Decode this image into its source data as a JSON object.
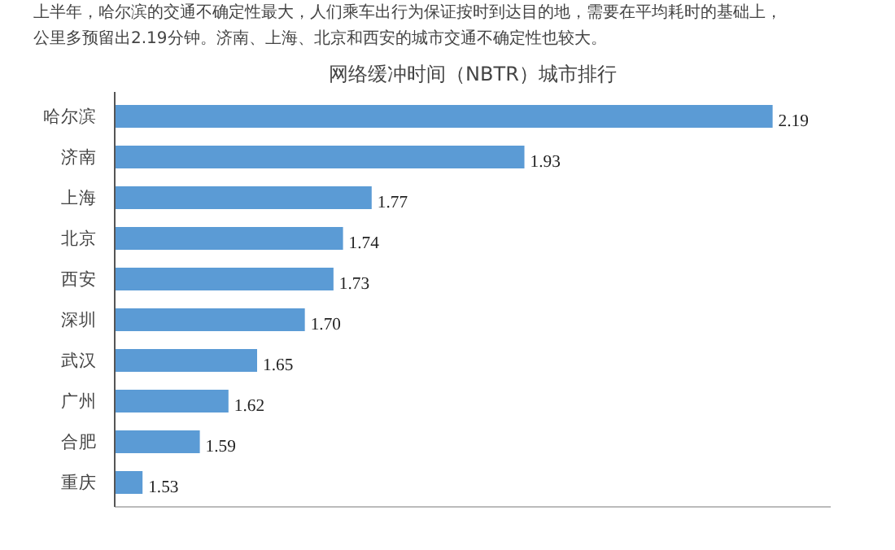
{
  "chart_data": {
    "type": "bar",
    "orientation": "horizontal",
    "title": "网络缓冲时间（NBTR）城市排行",
    "annotations": [
      "上半年，哈尔滨的交通不确定性最大，人们乘车出行为保证按时到达目的地，需要在平均耗时的基础上，",
      "公里多预留出2.19分钟。济南、上海、北京和西安的城市交通不确定性也较大。"
    ],
    "categories": [
      "哈尔滨",
      "济南",
      "上海",
      "北京",
      "西安",
      "深圳",
      "武汉",
      "广州",
      "合肥",
      "重庆"
    ],
    "values": [
      2.19,
      1.93,
      1.77,
      1.74,
      1.73,
      1.7,
      1.65,
      1.62,
      1.59,
      1.53
    ],
    "value_labels": [
      "2.19",
      "1.93",
      "1.77",
      "1.74",
      "1.73",
      "1.70",
      "1.65",
      "1.62",
      "1.59",
      "1.53"
    ],
    "color": "#5b9bd5",
    "xlim": [
      1.5,
      2.25
    ],
    "tick_labels": "y",
    "data_labels": true,
    "grid": false
  }
}
